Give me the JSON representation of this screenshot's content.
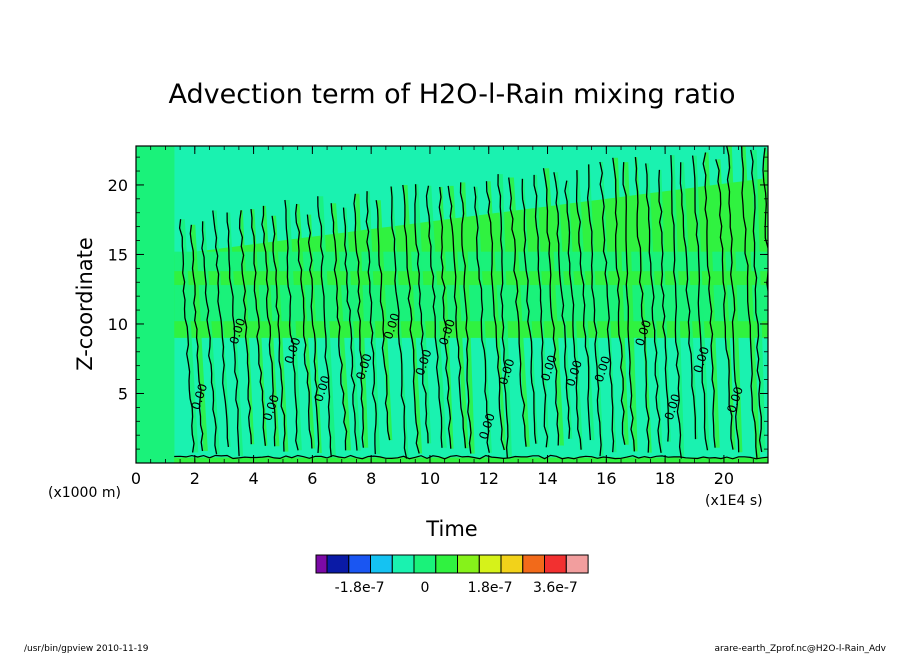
{
  "chart_data": {
    "type": "heatmap",
    "title": "Advection term of H2O-l-Rain mixing ratio",
    "xlabel": "Time",
    "ylabel": "Z-coordinate",
    "x_unit": "(x1E4 s)",
    "y_unit": "(x1000 m)",
    "xlim": [
      0,
      21.5
    ],
    "ylim": [
      0,
      22.8
    ],
    "x_ticks": [
      "0",
      "2",
      "4",
      "6",
      "8",
      "10",
      "12",
      "14",
      "16",
      "18",
      "20"
    ],
    "y_ticks": [
      "5",
      "10",
      "15",
      "20"
    ],
    "contour_label": "0.00",
    "contour_label_count": 18,
    "colorbar": {
      "colors": [
        "#7b0aa6",
        "#0a1aa6",
        "#1a56f2",
        "#15c2f2",
        "#1af2b0",
        "#1af27a",
        "#30f240",
        "#86f21a",
        "#d6f21a",
        "#f2d21a",
        "#f26a1a",
        "#f23030",
        "#f29e9e"
      ],
      "tick_labels": [
        "-1.8e-7",
        "0",
        "1.8e-7",
        "3.6e-7"
      ],
      "tick_values": [
        -1.8e-07,
        0,
        1.8e-07,
        3.6e-07
      ]
    }
  },
  "footer": {
    "left": "/usr/bin/gpview  2010-11-19",
    "right": "arare-earth_Zprof.nc@H2O-l-Rain_Adv"
  }
}
